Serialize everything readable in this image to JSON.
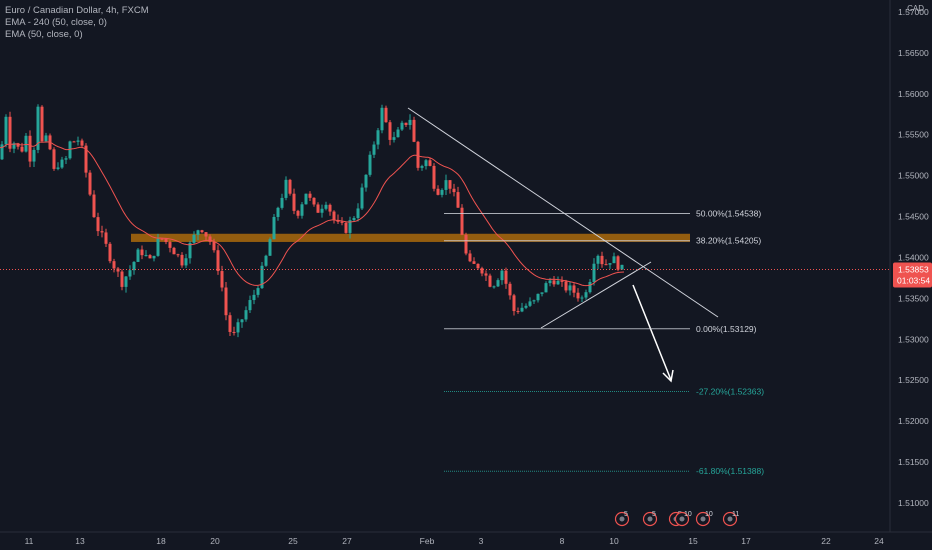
{
  "header": {
    "symbol_line": "Euro / Canadian Dollar, 4h, FXCM",
    "ema1": "EMA - 240 (50, close, 0)",
    "ema2": "EMA (50, close, 0)",
    "currency": "CAD"
  },
  "colors": {
    "background": "#131722",
    "up": "#26a69a",
    "down": "#ef5350",
    "ema": "#ef5350",
    "fib_white": "#d1d4dc",
    "fib_teal": "#26a69a",
    "zone": "#ff9800",
    "price_badge": "#ef5350",
    "grid_text": "#b2b5be"
  },
  "chart_data": {
    "type": "candlestick",
    "y_ticks": [
      "1.57000",
      "1.56500",
      "1.56000",
      "1.55500",
      "1.55000",
      "1.54500",
      "1.54000",
      "1.53500",
      "1.53000",
      "1.52500",
      "1.52000",
      "1.51500",
      "1.51000"
    ],
    "x_ticks": [
      "11",
      "13",
      "18",
      "20",
      "25",
      "27",
      "Feb",
      "3",
      "8",
      "10",
      "15",
      "17",
      "22",
      "24"
    ],
    "ylim": [
      1.5075,
      1.5725
    ],
    "last_price": "1.53853",
    "countdown": "01:03:54",
    "fib_levels": [
      {
        "label": "50.00%(1.54538)",
        "price": 1.54538,
        "color": "fib_white"
      },
      {
        "label": "38.20%(1.54205)",
        "price": 1.54205,
        "color": "fib_white"
      },
      {
        "label": "0.00%(1.53129)",
        "price": 1.53129,
        "color": "fib_white"
      },
      {
        "label": "-27.20%(1.52363)",
        "price": 1.52363,
        "color": "fib_teal"
      },
      {
        "label": "-61.80%(1.51388)",
        "price": 1.51388,
        "color": "fib_teal"
      }
    ],
    "resistance_zone": [
      1.5419,
      1.5429
    ],
    "event_markers": [
      "5",
      "5",
      "5",
      "10",
      "10",
      "11"
    ]
  }
}
